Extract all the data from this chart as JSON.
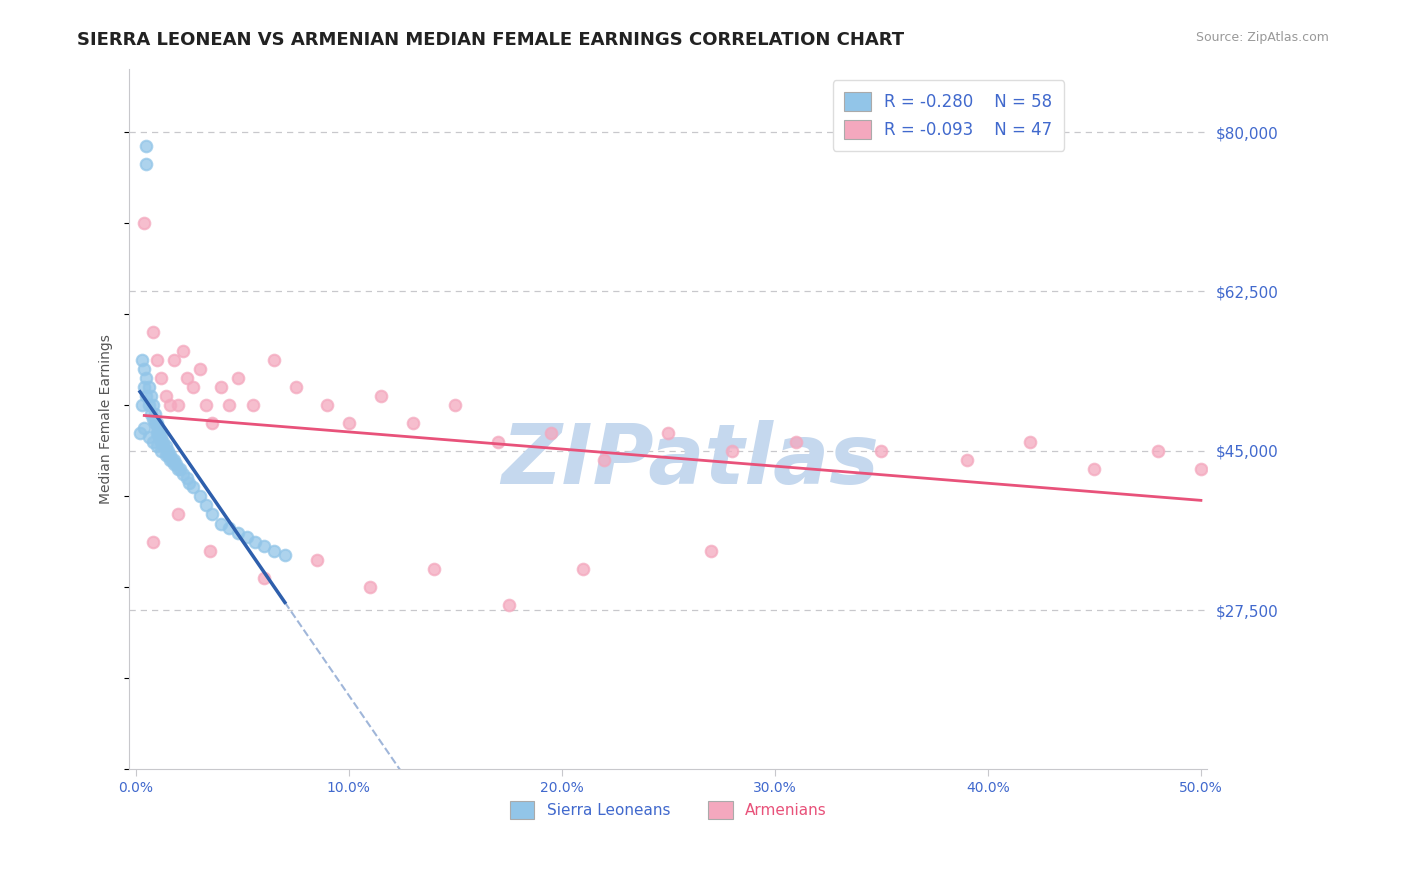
{
  "title": "SIERRA LEONEAN VS ARMENIAN MEDIAN FEMALE EARNINGS CORRELATION CHART",
  "source_text": "Source: ZipAtlas.com",
  "ylabel": "Median Female Earnings",
  "xlim": [
    -0.003,
    0.503
  ],
  "ylim": [
    10000,
    87000
  ],
  "yticks": [
    27500,
    45000,
    62500,
    80000
  ],
  "ytick_labels": [
    "$27,500",
    "$45,000",
    "$62,500",
    "$80,000"
  ],
  "xticks": [
    0.0,
    0.1,
    0.2,
    0.3,
    0.4,
    0.5
  ],
  "xtick_labels": [
    "0.0%",
    "10.0%",
    "20.0%",
    "30.0%",
    "40.0%",
    "50.0%"
  ],
  "sl_color": "#92C5E8",
  "arm_color": "#F4A8BE",
  "sl_line_color": "#2E5FAC",
  "arm_line_color": "#E8527A",
  "grid_color": "#C8C8CC",
  "bg_color": "#FFFFFF",
  "title_color": "#222222",
  "axis_label_color": "#555555",
  "tick_color": "#4169CD",
  "watermark_color": "#C5D8EE",
  "source_color": "#999999",
  "sl_label": "Sierra Leoneans",
  "arm_label": "Armenians",
  "arm_label_color": "#E8527A",
  "sl_x": [
    0.005,
    0.005,
    0.002,
    0.003,
    0.003,
    0.004,
    0.004,
    0.005,
    0.005,
    0.006,
    0.006,
    0.007,
    0.007,
    0.008,
    0.008,
    0.009,
    0.009,
    0.01,
    0.01,
    0.01,
    0.011,
    0.011,
    0.012,
    0.012,
    0.013,
    0.013,
    0.014,
    0.015,
    0.015,
    0.016,
    0.017,
    0.018,
    0.019,
    0.02,
    0.021,
    0.022,
    0.024,
    0.025,
    0.027,
    0.03,
    0.033,
    0.036,
    0.04,
    0.044,
    0.048,
    0.052,
    0.056,
    0.06,
    0.065,
    0.07,
    0.004,
    0.006,
    0.008,
    0.01,
    0.012,
    0.014,
    0.016,
    0.018
  ],
  "sl_y": [
    78500,
    76500,
    47000,
    55000,
    50000,
    54000,
    52000,
    51000,
    53000,
    50000,
    52000,
    49000,
    51000,
    48500,
    50000,
    48000,
    49000,
    47500,
    48000,
    47000,
    47000,
    46500,
    46500,
    46000,
    46000,
    45500,
    45500,
    45000,
    44500,
    44500,
    44000,
    44000,
    43500,
    43000,
    43000,
    42500,
    42000,
    41500,
    41000,
    40000,
    39000,
    38000,
    37000,
    36500,
    36000,
    35500,
    35000,
    34500,
    34000,
    33500,
    47500,
    46500,
    46000,
    45500,
    45000,
    44500,
    44000,
    43500
  ],
  "arm_x": [
    0.004,
    0.008,
    0.01,
    0.012,
    0.014,
    0.016,
    0.018,
    0.02,
    0.022,
    0.024,
    0.027,
    0.03,
    0.033,
    0.036,
    0.04,
    0.044,
    0.048,
    0.055,
    0.065,
    0.075,
    0.09,
    0.1,
    0.115,
    0.13,
    0.15,
    0.17,
    0.195,
    0.22,
    0.25,
    0.28,
    0.31,
    0.35,
    0.39,
    0.42,
    0.45,
    0.48,
    0.5,
    0.008,
    0.02,
    0.035,
    0.06,
    0.085,
    0.11,
    0.14,
    0.175,
    0.21,
    0.27
  ],
  "arm_y": [
    70000,
    58000,
    55000,
    53000,
    51000,
    50000,
    55000,
    50000,
    56000,
    53000,
    52000,
    54000,
    50000,
    48000,
    52000,
    50000,
    53000,
    50000,
    55000,
    52000,
    50000,
    48000,
    51000,
    48000,
    50000,
    46000,
    47000,
    44000,
    47000,
    45000,
    46000,
    45000,
    44000,
    46000,
    43000,
    45000,
    43000,
    35000,
    38000,
    34000,
    31000,
    33000,
    30000,
    32000,
    28000,
    32000,
    34000
  ]
}
